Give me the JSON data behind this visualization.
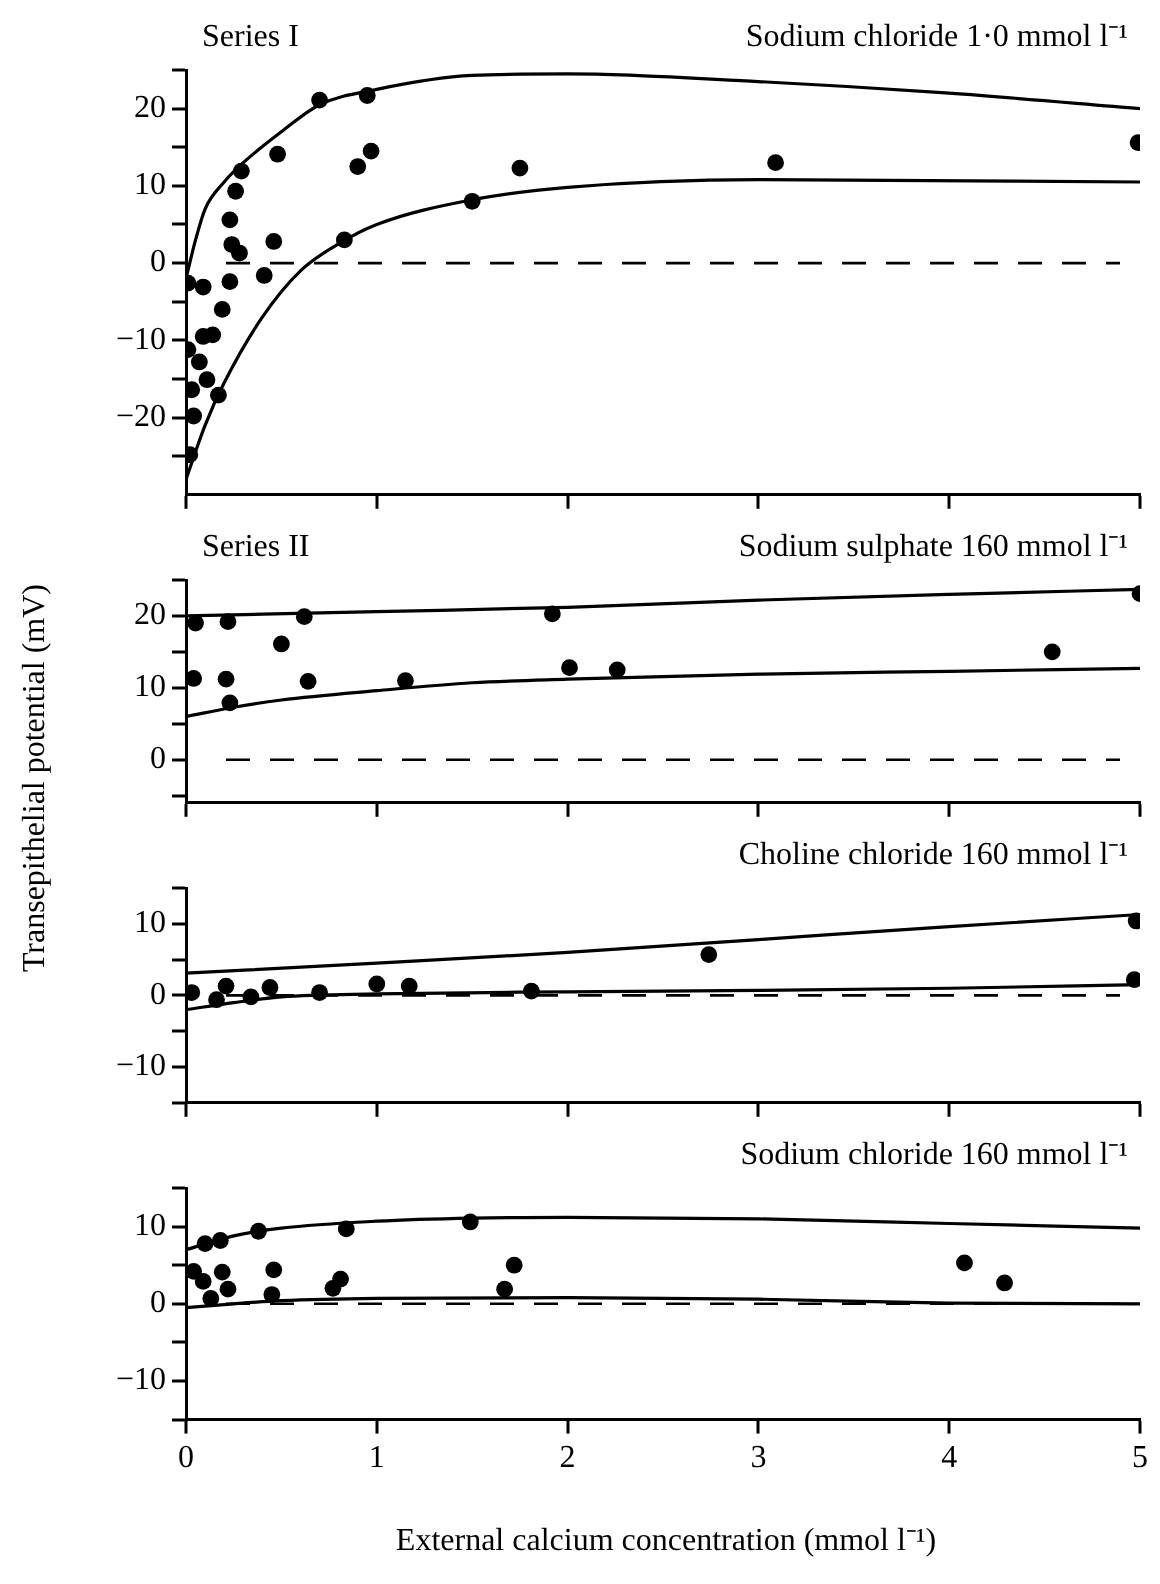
{
  "chart_data": [
    {
      "type": "scatter",
      "title": "Sodium chloride 1·0 mmol l⁻¹",
      "annotations": [
        "Series I"
      ],
      "ylabel": "Transepithelial potential (mV)",
      "marker": "circle",
      "grid": false,
      "legend": false,
      "tick_labels": "y",
      "xlim": [
        0,
        5
      ],
      "xticks": [
        0,
        1,
        2,
        3,
        4,
        5
      ],
      "ylim": [
        -30,
        25
      ],
      "yticks": [
        {
          "value": -25,
          "label": null
        },
        {
          "value": -20,
          "label": "−20"
        },
        {
          "value": -15,
          "label": null
        },
        {
          "value": -10,
          "label": "−10"
        },
        {
          "value": -5,
          "label": null
        },
        0,
        {
          "value": 5,
          "label": null
        },
        10,
        {
          "value": 15,
          "label": null
        },
        20,
        {
          "value": 25,
          "label": null
        }
      ],
      "ref_lines": [
        {
          "axis": "y",
          "value": 0,
          "line_style": "dashed",
          "color": "#000000"
        }
      ],
      "series": [
        {
          "color": "#000000",
          "x": [
            0.7,
            0.95,
            0.48,
            0.9,
            0.97,
            1.75,
            1.5,
            0.83,
            0.46,
            0.29,
            0.26,
            0.23,
            0.24,
            0.28,
            0.23,
            0.41,
            0.09,
            0.19,
            0.09,
            0.14,
            0.07,
            0.11,
            0.03,
            0.17,
            0.04,
            0.02,
            0.01,
            0.01,
            3.09,
            4.99
          ],
          "values": [
            21.1,
            21.7,
            14.1,
            12.5,
            14.5,
            12.3,
            8.0,
            3.0,
            2.8,
            11.9,
            9.3,
            5.6,
            2.4,
            1.3,
            -2.4,
            -1.6,
            -3.1,
            -6.0,
            -9.5,
            -9.3,
            -12.8,
            -15.1,
            -16.4,
            -17.1,
            -19.8,
            -24.8,
            -2.6,
            -11.2,
            13.0,
            15.6
          ]
        },
        {
          "type": "line",
          "marker": "none",
          "color": "#000000",
          "x": [
            0,
            0.05,
            0.1,
            0.2,
            0.3,
            0.5,
            0.7,
            1.0,
            1.5,
            2.0,
            3.0,
            4.0,
            5.0
          ],
          "values": [
            -2,
            3,
            7,
            10.5,
            13,
            17,
            20.5,
            22.5,
            24.3,
            24.5,
            23.5,
            22,
            20
          ]
        },
        {
          "type": "line",
          "marker": "none",
          "color": "#000000",
          "x": [
            0,
            0.1,
            0.2,
            0.4,
            0.6,
            0.8,
            1.0,
            1.5,
            2.0,
            3.0,
            5.0
          ],
          "values": [
            -28,
            -21,
            -15.5,
            -7,
            -1,
            2.5,
            5,
            8.2,
            9.8,
            10.8,
            10.5
          ]
        }
      ]
    },
    {
      "type": "scatter",
      "title": "Sodium sulphate 160 mmol l⁻¹",
      "annotations": [
        "Series II"
      ],
      "marker": "circle",
      "grid": false,
      "legend": false,
      "tick_labels": "y",
      "xlim": [
        0,
        5
      ],
      "xticks": [
        0,
        1,
        2,
        3,
        4,
        5
      ],
      "ylim": [
        -6,
        25
      ],
      "yticks": [
        {
          "value": -5,
          "label": null
        },
        0,
        {
          "value": 5,
          "label": null
        },
        10,
        {
          "value": 15,
          "label": null
        },
        20,
        {
          "value": 25,
          "label": null
        }
      ],
      "ref_lines": [
        {
          "axis": "y",
          "value": 0,
          "line_style": "dashed",
          "color": "#000000"
        }
      ],
      "series": [
        {
          "color": "#000000",
          "x": [
            0.05,
            0.04,
            0.22,
            0.21,
            0.23,
            0.5,
            0.62,
            0.64,
            1.15,
            1.92,
            2.01,
            2.26,
            4.54,
            5.0
          ],
          "values": [
            19.0,
            11.3,
            19.2,
            11.2,
            7.9,
            16.1,
            19.9,
            10.9,
            11.0,
            20.3,
            12.8,
            12.5,
            15.0,
            23.1
          ]
        },
        {
          "type": "line",
          "marker": "none",
          "color": "#000000",
          "x": [
            0,
            1,
            2,
            3,
            4,
            5
          ],
          "values": [
            20,
            20.6,
            21.2,
            22.2,
            23,
            23.7
          ]
        },
        {
          "type": "line",
          "marker": "none",
          "color": "#000000",
          "x": [
            0,
            0.25,
            0.5,
            1,
            1.5,
            2,
            3,
            4,
            5
          ],
          "values": [
            6,
            7.3,
            8.3,
            9.6,
            10.7,
            11.2,
            11.9,
            12.3,
            12.7
          ]
        }
      ]
    },
    {
      "type": "scatter",
      "title": "Choline chloride 160 mmol l⁻¹",
      "marker": "circle",
      "grid": false,
      "legend": false,
      "tick_labels": "y",
      "xlim": [
        0,
        5
      ],
      "xticks": [
        0,
        1,
        2,
        3,
        4,
        5
      ],
      "ylim": [
        -15,
        15
      ],
      "yticks": [
        {
          "value": -15,
          "label": null
        },
        {
          "value": -10,
          "label": "−10"
        },
        {
          "value": -5,
          "label": null
        },
        0,
        {
          "value": 5,
          "label": null
        },
        10,
        {
          "value": 15,
          "label": null
        }
      ],
      "ref_lines": [
        {
          "axis": "y",
          "value": 0,
          "line_style": "dashed",
          "color": "#000000"
        }
      ],
      "series": [
        {
          "color": "#000000",
          "x": [
            0.03,
            0.16,
            0.21,
            0.34,
            0.44,
            0.7,
            1.0,
            1.17,
            1.81,
            2.74,
            4.98,
            4.97
          ],
          "values": [
            0.4,
            -0.6,
            1.3,
            -0.2,
            1.1,
            0.4,
            1.6,
            1.3,
            0.6,
            5.7,
            10.4,
            2.2
          ]
        },
        {
          "type": "line",
          "marker": "none",
          "color": "#000000",
          "x": [
            0,
            1,
            2,
            3,
            4,
            5
          ],
          "values": [
            3.1,
            4.5,
            6.0,
            7.8,
            9.6,
            11.3
          ]
        },
        {
          "type": "line",
          "marker": "none",
          "color": "#000000",
          "x": [
            0,
            0.25,
            0.5,
            1,
            2,
            3,
            4,
            5
          ],
          "values": [
            -2,
            -1,
            -0.2,
            0.2,
            0.5,
            0.7,
            1.0,
            1.5
          ]
        }
      ]
    },
    {
      "type": "scatter",
      "title": "Sodium chloride 160 mmol l⁻¹",
      "xlabel": "External calcium concentration (mmol l⁻¹)",
      "marker": "circle",
      "grid": false,
      "legend": false,
      "xlim": [
        0,
        5
      ],
      "xticks": [
        0,
        1,
        2,
        3,
        4,
        5
      ],
      "ylim": [
        -15,
        15
      ],
      "yticks": [
        {
          "value": -15,
          "label": null
        },
        {
          "value": -10,
          "label": "−10"
        },
        {
          "value": -5,
          "label": null
        },
        0,
        {
          "value": 5,
          "label": null
        },
        10,
        {
          "value": 15,
          "label": null
        }
      ],
      "ref_lines": [
        {
          "axis": "y",
          "value": 0,
          "line_style": "dashed",
          "color": "#000000"
        }
      ],
      "series": [
        {
          "color": "#000000",
          "x": [
            0.1,
            0.18,
            0.38,
            0.84,
            1.49,
            1.72,
            1.67,
            4.08,
            4.29,
            0.46,
            0.45,
            0.19,
            0.22,
            0.09,
            0.04,
            0.77,
            0.81,
            0.13
          ],
          "values": [
            7.8,
            8.2,
            9.4,
            9.7,
            10.6,
            5.0,
            1.9,
            5.3,
            2.7,
            4.4,
            1.2,
            4.1,
            1.9,
            2.9,
            4.2,
            2.0,
            3.2,
            0.7
          ]
        },
        {
          "type": "line",
          "marker": "none",
          "color": "#000000",
          "x": [
            0,
            0.25,
            0.5,
            1,
            1.5,
            2,
            3,
            4,
            5
          ],
          "values": [
            7,
            8.8,
            9.8,
            10.7,
            11.1,
            11.2,
            11,
            10.4,
            9.8
          ]
        },
        {
          "type": "line",
          "marker": "none",
          "color": "#000000",
          "x": [
            0,
            0.25,
            0.5,
            1,
            2,
            3,
            4,
            5
          ],
          "values": [
            -0.5,
            0,
            0.4,
            0.7,
            0.8,
            0.6,
            0.1,
            0
          ]
        }
      ]
    }
  ]
}
